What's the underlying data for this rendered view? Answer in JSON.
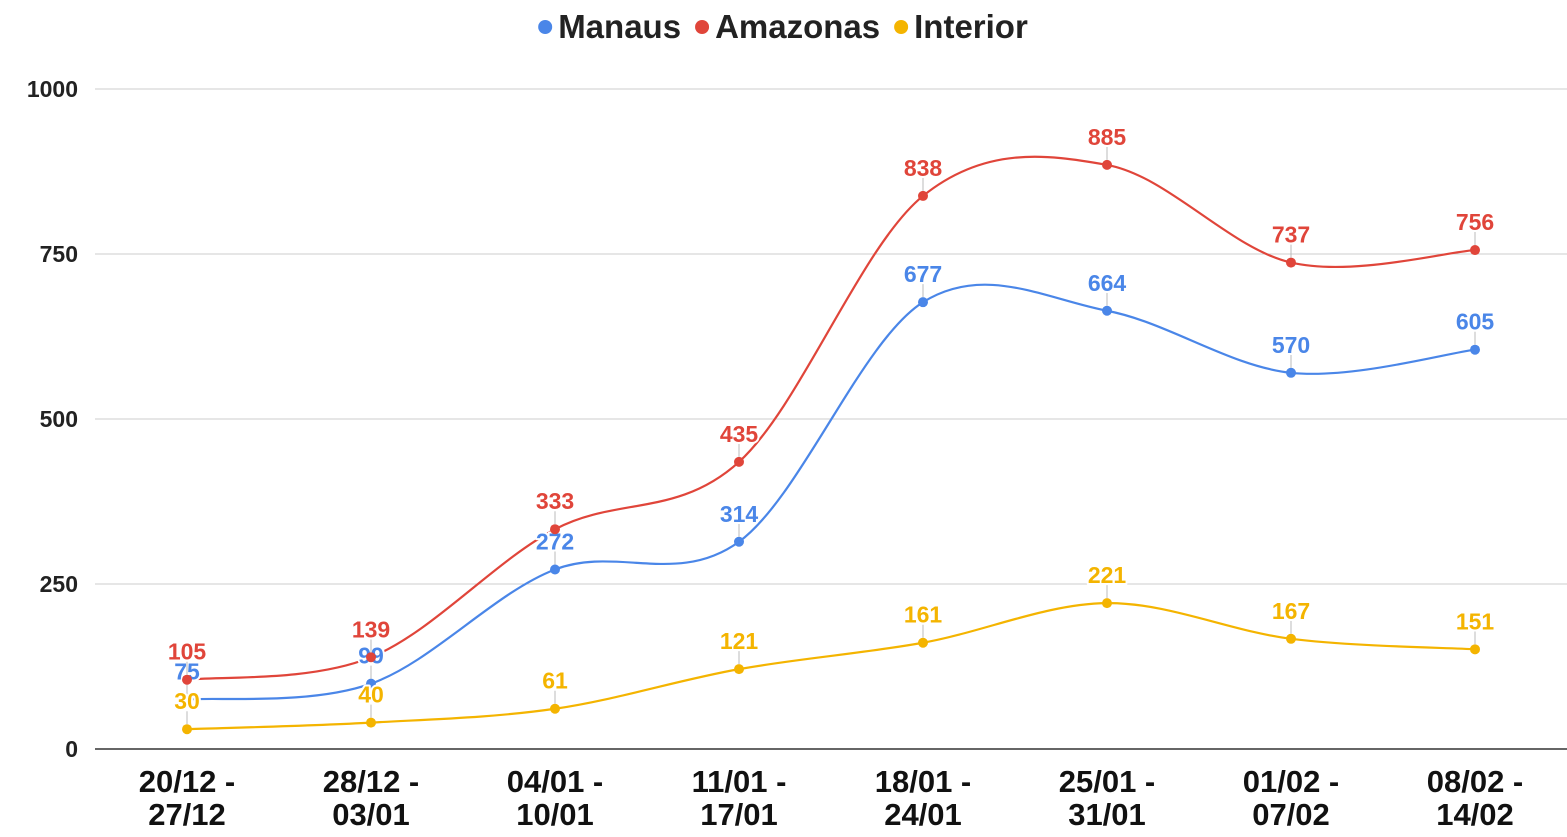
{
  "chart_data": {
    "type": "line",
    "categories": [
      "20/12 - 27/12",
      "28/12 - 03/01",
      "04/01 - 10/01",
      "11/01 - 17/01",
      "18/01 - 24/01",
      "25/01 - 31/01",
      "01/02 - 07/02",
      "08/02 - 14/02"
    ],
    "series": [
      {
        "name": "Manaus",
        "color": "#4a86e8",
        "values": [
          75,
          99,
          272,
          314,
          677,
          664,
          570,
          605
        ]
      },
      {
        "name": "Amazonas",
        "color": "#e0453a",
        "values": [
          105,
          139,
          333,
          435,
          838,
          885,
          737,
          756
        ]
      },
      {
        "name": "Interior",
        "color": "#f4b400",
        "values": [
          30,
          40,
          61,
          121,
          161,
          221,
          167,
          151
        ]
      }
    ],
    "ylim": [
      0,
      1000
    ],
    "yticks": [
      0,
      250,
      500,
      750,
      1000
    ],
    "grid": true,
    "legend": "top",
    "smooth": true
  }
}
